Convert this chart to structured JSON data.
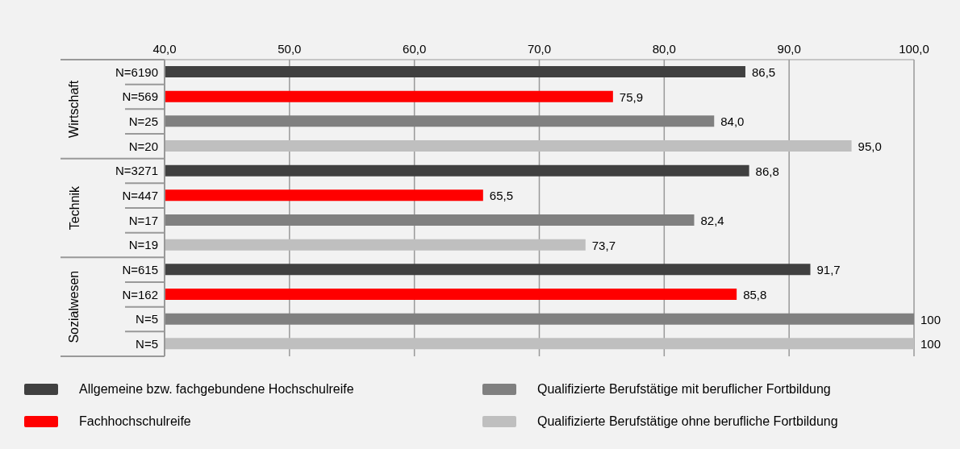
{
  "chart_data": {
    "type": "bar",
    "orientation": "horizontal",
    "stacked": true,
    "categories": [
      "N=6190",
      "N=569",
      "N=25",
      "N=20",
      "N=3271",
      "N=447",
      "N=17",
      "N=19",
      "N=615",
      "N=162",
      "N=5",
      "N=5"
    ],
    "annotations": [
      "Wirtschaft",
      "Technik",
      "Sozialwesen"
    ],
    "series": [
      {
        "name": "Allgemeine bzw. fachgebundene Hochschulreife",
        "color": "#404040",
        "values": [
          86.5,
          null,
          null,
          null,
          86.8,
          null,
          null,
          null,
          91.7,
          null,
          null,
          null
        ],
        "value_labels": [
          "86,5",
          null,
          null,
          null,
          "86,8",
          null,
          null,
          null,
          "91,7",
          null,
          null,
          null
        ]
      },
      {
        "name": "Fachhochschulreife",
        "color": "#ff0000",
        "values": [
          null,
          75.9,
          null,
          null,
          null,
          65.5,
          null,
          null,
          null,
          85.8,
          null,
          null
        ],
        "value_labels": [
          null,
          "75,9",
          null,
          null,
          null,
          "65,5",
          null,
          null,
          null,
          "85,8",
          null,
          null
        ]
      },
      {
        "name": "Qualifizierte Berufstätige mit beruflicher Fortbildung",
        "color": "#808080",
        "values": [
          null,
          null,
          84.0,
          null,
          null,
          null,
          82.4,
          null,
          null,
          null,
          100,
          null
        ],
        "value_labels": [
          null,
          null,
          "84,0",
          null,
          null,
          null,
          "82,4",
          null,
          null,
          null,
          "100",
          null
        ]
      },
      {
        "name": "Qualifizierte Berufstätige ohne berufliche Fortbildung",
        "color": "#bfbfbf",
        "values": [
          null,
          null,
          null,
          95.0,
          null,
          null,
          null,
          73.7,
          null,
          null,
          null,
          100
        ],
        "value_labels": [
          null,
          null,
          null,
          "95,0",
          null,
          null,
          null,
          "73,7",
          null,
          null,
          null,
          "100"
        ]
      }
    ],
    "xlim": [
      40,
      100
    ],
    "xticks": [
      {
        "value": 40,
        "label": "40,0"
      },
      {
        "value": 50,
        "label": "50,0"
      },
      {
        "value": 60,
        "label": "60,0"
      },
      {
        "value": 70,
        "label": "70,0"
      },
      {
        "value": 80,
        "label": "80,0"
      },
      {
        "value": 90,
        "label": "90,0"
      },
      {
        "value": 100,
        "label": "100,0"
      }
    ],
    "grid": "x",
    "legend": "bottom"
  }
}
